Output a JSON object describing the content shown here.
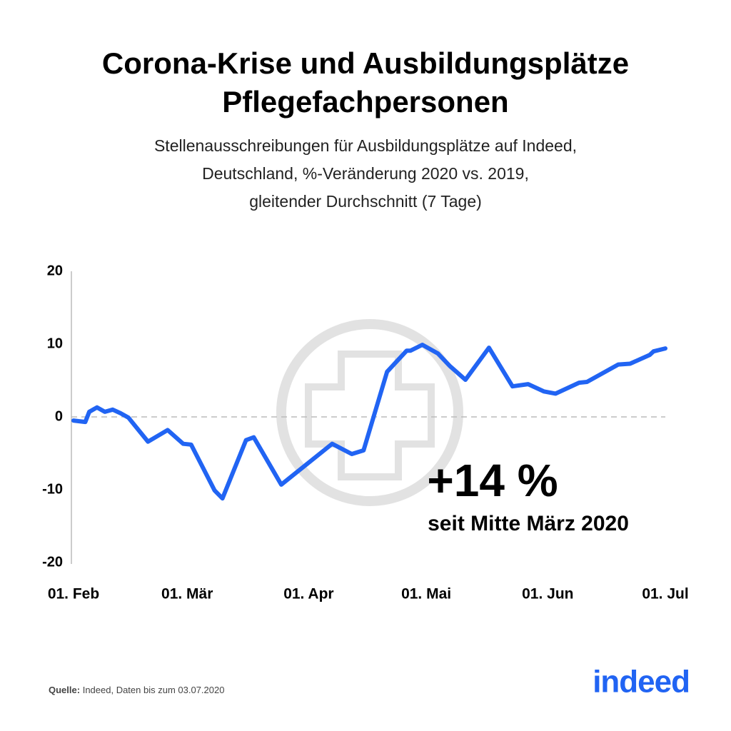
{
  "chart_data": {
    "type": "line",
    "title": [
      "Corona-Krise und Ausbildungsplätze",
      "Pflegefachpersonen"
    ],
    "subtitle": [
      "Stellenausschreibungen für Ausbildungsplätze auf Indeed,",
      "Deutschland, %-Veränderung 2020 vs. 2019,",
      "gleitender Durchschnitt (7 Tage)"
    ],
    "x": [
      "02-01",
      "02-04",
      "02-05",
      "02-07",
      "02-09",
      "02-11",
      "02-13",
      "02-15",
      "02-20",
      "02-25",
      "02-29",
      "03-02",
      "03-08",
      "03-10",
      "03-16",
      "03-18",
      "03-25",
      "04-07",
      "04-12",
      "04-15",
      "04-21",
      "04-26",
      "04-27",
      "04-30",
      "05-04",
      "05-07",
      "05-11",
      "05-17",
      "05-23",
      "05-27",
      "05-31",
      "06-03",
      "06-09",
      "06-11",
      "06-19",
      "06-22",
      "06-27",
      "06-28",
      "07-01"
    ],
    "series": [
      {
        "color": "#2164f3",
        "values": [
          -0.5,
          -0.7,
          0.7,
          1.3,
          0.7,
          1.0,
          0.5,
          -0.1,
          -3.4,
          -1.8,
          -3.7,
          -3.8,
          -10.1,
          -11.2,
          -3.2,
          -2.8,
          -9.3,
          -3.7,
          -5.1,
          -4.6,
          6.2,
          9.1,
          9.1,
          9.9,
          8.7,
          7.0,
          5.1,
          9.5,
          4.2,
          4.5,
          3.5,
          3.2,
          4.7,
          4.8,
          7.2,
          7.3,
          8.5,
          9.0,
          9.4
        ]
      }
    ],
    "xlim": [
      "02-01",
      "07-01"
    ],
    "xticks": [
      {
        "value": "02-01",
        "label": "01. Feb"
      },
      {
        "value": "03-01",
        "label": "01. Mär"
      },
      {
        "value": "04-01",
        "label": "01. Apr"
      },
      {
        "value": "05-01",
        "label": "01. Mai"
      },
      {
        "value": "06-01",
        "label": "01. Jun"
      },
      {
        "value": "07-01",
        "label": "01. Jul"
      }
    ],
    "ylim": [
      -20,
      20
    ],
    "yticks": [
      20,
      10,
      0,
      -10,
      -20
    ],
    "zero_line": true,
    "annotation": {
      "value": "+14 %",
      "text": "seit Mitte März 2020"
    },
    "source": {
      "label": "Quelle:",
      "text": "Indeed, Daten bis zum 03.07.2020"
    },
    "logo": "indeed"
  }
}
